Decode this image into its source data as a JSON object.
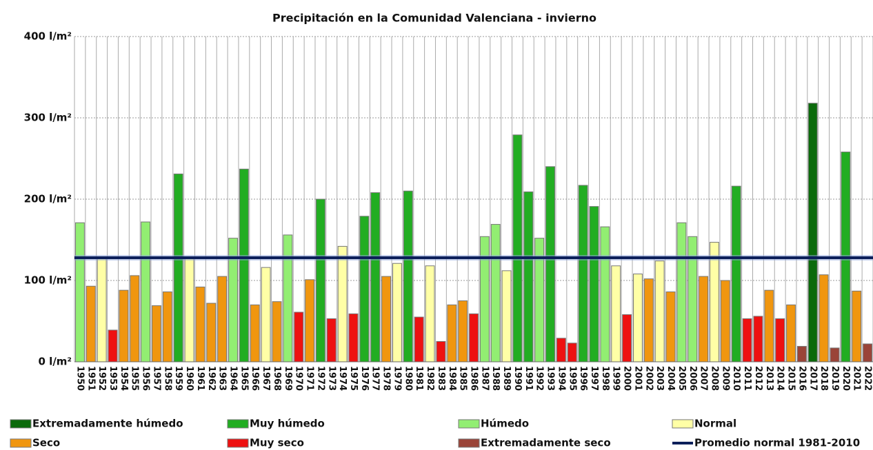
{
  "chart_data": {
    "type": "bar",
    "title": "Precipitación en la Comunidad Valenciana - invierno",
    "categories": [
      "1950",
      "1951",
      "1952",
      "1953",
      "1954",
      "1955",
      "1956",
      "1957",
      "1958",
      "1959",
      "1960",
      "1961",
      "1962",
      "1963",
      "1964",
      "1965",
      "1966",
      "1967",
      "1968",
      "1969",
      "1970",
      "1971",
      "1972",
      "1973",
      "1974",
      "1975",
      "1976",
      "1977",
      "1978",
      "1979",
      "1980",
      "1981",
      "1982",
      "1983",
      "1984",
      "1985",
      "1986",
      "1987",
      "1988",
      "1989",
      "1990",
      "1991",
      "1992",
      "1993",
      "1994",
      "1995",
      "1996",
      "1997",
      "1998",
      "1999",
      "2000",
      "2001",
      "2002",
      "2003",
      "2004",
      "2005",
      "2006",
      "2007",
      "2008",
      "2009",
      "2010",
      "2011",
      "2012",
      "2013",
      "2014",
      "2015",
      "2016",
      "2017",
      "2018",
      "2019",
      "2020",
      "2021",
      "2022"
    ],
    "series": [
      {
        "name": "Extremadamente húmedo",
        "color": "#0b6a0b",
        "values": [
          null,
          null,
          null,
          null,
          null,
          null,
          null,
          null,
          null,
          null,
          null,
          null,
          null,
          null,
          null,
          null,
          null,
          null,
          null,
          null,
          null,
          null,
          null,
          null,
          null,
          null,
          null,
          null,
          null,
          null,
          null,
          null,
          null,
          null,
          null,
          null,
          null,
          null,
          null,
          null,
          null,
          null,
          null,
          null,
          null,
          null,
          null,
          null,
          null,
          null,
          null,
          null,
          null,
          null,
          null,
          null,
          null,
          null,
          null,
          null,
          null,
          null,
          null,
          null,
          null,
          null,
          null,
          318,
          null,
          null,
          null,
          null,
          null
        ]
      },
      {
        "name": "Muy húmedo",
        "color": "#22ad22",
        "values": [
          null,
          null,
          null,
          null,
          null,
          null,
          null,
          null,
          null,
          231,
          null,
          null,
          null,
          null,
          null,
          237,
          null,
          null,
          null,
          null,
          null,
          null,
          200,
          null,
          null,
          null,
          179,
          208,
          null,
          null,
          210,
          null,
          null,
          null,
          null,
          null,
          null,
          null,
          null,
          null,
          279,
          209,
          null,
          240,
          null,
          null,
          217,
          191,
          null,
          null,
          null,
          null,
          null,
          null,
          null,
          null,
          null,
          null,
          null,
          null,
          216,
          null,
          null,
          null,
          null,
          null,
          null,
          null,
          null,
          null,
          258,
          null,
          null
        ]
      },
      {
        "name": "Húmedo",
        "color": "#92ee72",
        "values": [
          171,
          null,
          null,
          null,
          null,
          null,
          172,
          null,
          null,
          null,
          null,
          null,
          null,
          null,
          152,
          null,
          null,
          null,
          null,
          156,
          null,
          null,
          null,
          null,
          null,
          null,
          null,
          null,
          null,
          null,
          null,
          null,
          null,
          null,
          null,
          null,
          null,
          154,
          169,
          null,
          null,
          null,
          152,
          null,
          null,
          null,
          null,
          null,
          166,
          null,
          null,
          null,
          null,
          null,
          null,
          171,
          154,
          null,
          null,
          null,
          null,
          null,
          null,
          null,
          null,
          null,
          null,
          null,
          null,
          null,
          null,
          null,
          null
        ]
      },
      {
        "name": "Normal",
        "color": "#ffffa6",
        "values": [
          null,
          null,
          127,
          null,
          null,
          null,
          null,
          null,
          null,
          null,
          127,
          null,
          null,
          null,
          null,
          null,
          null,
          116,
          null,
          null,
          null,
          null,
          null,
          null,
          142,
          null,
          null,
          null,
          null,
          121,
          null,
          null,
          118,
          null,
          null,
          null,
          null,
          null,
          null,
          112,
          null,
          null,
          null,
          null,
          null,
          null,
          null,
          null,
          null,
          118,
          null,
          108,
          null,
          124,
          null,
          null,
          null,
          null,
          147,
          null,
          null,
          null,
          null,
          null,
          null,
          null,
          null,
          null,
          null,
          null,
          null,
          null,
          null
        ]
      },
      {
        "name": "Seco",
        "color": "#f0960f",
        "values": [
          null,
          93,
          null,
          null,
          88,
          106,
          null,
          69,
          86,
          null,
          null,
          92,
          72,
          105,
          null,
          null,
          70,
          null,
          74,
          null,
          null,
          101,
          null,
          null,
          null,
          null,
          null,
          null,
          105,
          null,
          null,
          null,
          null,
          null,
          70,
          75,
          null,
          null,
          null,
          null,
          null,
          null,
          null,
          null,
          null,
          null,
          null,
          null,
          null,
          null,
          null,
          null,
          102,
          null,
          86,
          null,
          null,
          105,
          null,
          100,
          null,
          null,
          null,
          88,
          null,
          70,
          null,
          null,
          107,
          null,
          null,
          87,
          null
        ]
      },
      {
        "name": "Muy seco",
        "color": "#ee1111",
        "values": [
          null,
          null,
          null,
          39,
          null,
          null,
          null,
          null,
          null,
          null,
          null,
          null,
          null,
          null,
          null,
          null,
          null,
          null,
          null,
          null,
          61,
          null,
          null,
          53,
          null,
          59,
          null,
          null,
          null,
          null,
          null,
          55,
          null,
          25,
          null,
          null,
          59,
          null,
          null,
          null,
          null,
          null,
          null,
          null,
          29,
          23,
          null,
          null,
          null,
          null,
          58,
          null,
          null,
          null,
          null,
          null,
          null,
          null,
          null,
          null,
          null,
          53,
          56,
          null,
          53,
          null,
          null,
          null,
          null,
          null,
          null,
          null,
          null
        ]
      },
      {
        "name": "Extremadamente seco",
        "color": "#9a4438",
        "values": [
          null,
          null,
          null,
          null,
          null,
          null,
          null,
          null,
          null,
          null,
          null,
          null,
          null,
          null,
          null,
          null,
          null,
          null,
          null,
          null,
          null,
          null,
          null,
          null,
          null,
          null,
          null,
          null,
          null,
          null,
          null,
          null,
          null,
          null,
          null,
          null,
          null,
          null,
          null,
          null,
          null,
          null,
          null,
          null,
          null,
          null,
          null,
          null,
          null,
          null,
          null,
          null,
          null,
          null,
          null,
          null,
          null,
          null,
          null,
          null,
          null,
          null,
          null,
          null,
          null,
          null,
          19,
          null,
          null,
          17,
          null,
          null,
          22
        ]
      }
    ],
    "reference_line": {
      "name": "Promedio normal 1981-2010",
      "value": 128,
      "color": "#0c1f5a"
    },
    "ylim": [
      0,
      400
    ],
    "yticks": [
      {
        "value": 0,
        "label": "0 l/m²"
      },
      {
        "value": 100,
        "label": "100 l/m²"
      },
      {
        "value": 200,
        "label": "200 l/m²"
      },
      {
        "value": 300,
        "label": "300 l/m²"
      },
      {
        "value": 400,
        "label": "400 l/m²"
      }
    ],
    "grid": true
  }
}
